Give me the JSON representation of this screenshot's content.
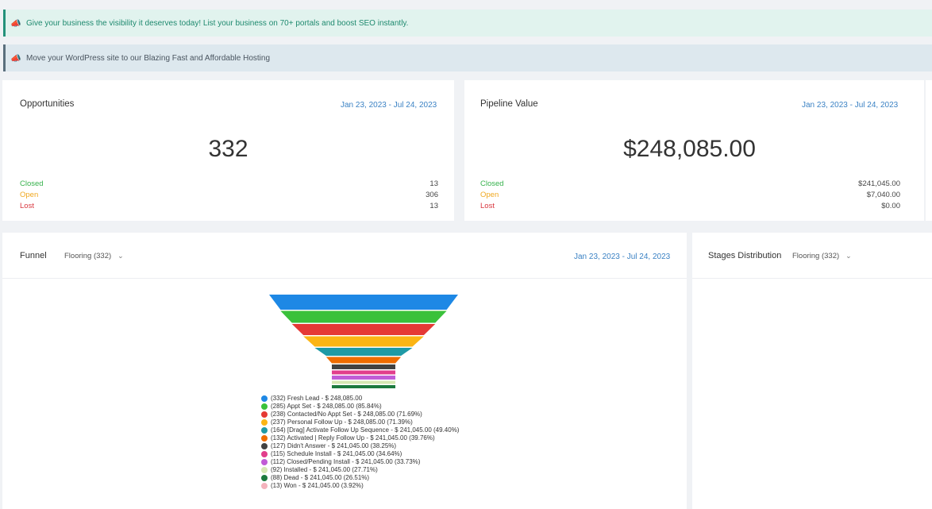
{
  "banners": [
    {
      "icon": "megaphone-icon",
      "text": "Give your business the visibility it deserves today! List your business on 70+ portals and boost SEO instantly."
    },
    {
      "icon": "megaphone-icon",
      "text": "Move your WordPress site to our Blazing Fast and Affordable Hosting"
    }
  ],
  "opportunities": {
    "title": "Opportunities",
    "range": "Jan 23, 2023 - Jul 24, 2023",
    "total": "332",
    "rows": [
      {
        "label": "Closed",
        "value": "13"
      },
      {
        "label": "Open",
        "value": "306"
      },
      {
        "label": "Lost",
        "value": "13"
      }
    ]
  },
  "pipeline": {
    "title": "Pipeline Value",
    "range": "Jan 23, 2023 - Jul 24, 2023",
    "total": "$248,085.00",
    "rows": [
      {
        "label": "Closed",
        "value": "$241,045.00"
      },
      {
        "label": "Open",
        "value": "$7,040.00"
      },
      {
        "label": "Lost",
        "value": "$0.00"
      }
    ]
  },
  "funnel": {
    "title": "Funnel",
    "pipeline_select": "Flooring (332)",
    "range": "Jan 23, 2023 - Jul 24, 2023"
  },
  "stages": {
    "title": "Stages Distribution",
    "pipeline_select": "Flooring (332)"
  },
  "colors": {
    "closed": "#37b24d",
    "open": "#f0a820",
    "lost": "#d9363e",
    "link": "#3b82c4"
  },
  "chart_data": {
    "type": "funnel",
    "categories": [
      "Fresh Lead",
      "Appt Set",
      "Contacted/No Appt Set",
      "Personal Follow Up",
      "[Drag] Activate Follow Up Sequence",
      "Activated | Reply Follow Up",
      "Didn't Answer",
      "Schedule Install",
      "Closed/Pending Install",
      "Installed",
      "Dead",
      "Won"
    ],
    "values": [
      332,
      285,
      238,
      237,
      164,
      132,
      127,
      115,
      112,
      92,
      88,
      13
    ],
    "colors": [
      "#1e88e5",
      "#3ac13a",
      "#e53935",
      "#fbb515",
      "#1f9aa6",
      "#ef6c00",
      "#424242",
      "#e23e8c",
      "#c15cd6",
      "#d6e8b3",
      "#1c7a3e",
      "#f4b3bd"
    ],
    "legend": [
      "(332) Fresh Lead - $ 248,085.00",
      "(285) Appt Set - $ 248,085.00 (85.84%)",
      "(238) Contacted/No Appt Set - $ 248,085.00 (71.69%)",
      "(237) Personal Follow Up - $ 248,085.00 (71.39%)",
      "(164) [Drag] Activate Follow Up Sequence - $ 241,045.00 (49.40%)",
      "(132) Activated | Reply Follow Up - $ 241,045.00 (39.76%)",
      "(127) Didn't Answer - $ 241,045.00 (38.25%)",
      "(115) Schedule Install - $ 241,045.00 (34.64%)",
      "(112) Closed/Pending Install - $ 241,045.00 (33.73%)",
      "(92) Installed - $ 241,045.00 (27.71%)",
      "(88) Dead - $ 241,045.00 (26.51%)",
      "(13) Won - $ 241,045.00 (3.92%)"
    ]
  }
}
